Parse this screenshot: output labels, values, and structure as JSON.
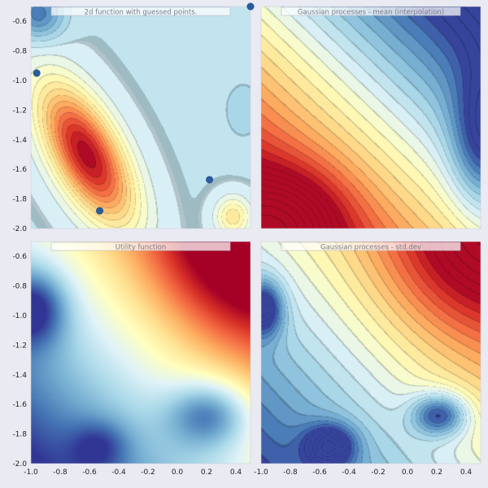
{
  "figure": {
    "background": "#eaeaf2",
    "colormap": [
      "#313695",
      "#4575b4",
      "#74add1",
      "#abd9e9",
      "#e0f3f8",
      "#ffffbf",
      "#fee090",
      "#fdae61",
      "#f46d43",
      "#d73027",
      "#a50026"
    ]
  },
  "chart_data": [
    {
      "type": "heatmap",
      "style": "filled-contour",
      "title": "2d function with guessed points.",
      "xlim": [
        -1.0,
        0.5
      ],
      "ylim": [
        -2.0,
        -0.5
      ],
      "yticks": [
        -0.6,
        -0.8,
        -1.0,
        -1.2,
        -1.4,
        -1.6,
        -1.8,
        -2.0
      ],
      "points": [
        {
          "x": -0.96,
          "y": -0.95
        },
        {
          "x": 0.5,
          "y": -0.5
        },
        {
          "x": 0.22,
          "y": -1.67
        },
        {
          "x": -0.53,
          "y": -1.88
        }
      ],
      "peak": {
        "x": -0.6,
        "y": -1.5
      }
    },
    {
      "type": "heatmap",
      "style": "filled-contour",
      "title": "Gaussian processes - mean (interpolation)",
      "xlim": [
        -1.0,
        0.5
      ],
      "ylim": [
        -2.0,
        -0.5
      ]
    },
    {
      "type": "heatmap",
      "style": "smooth",
      "title": "Utility function",
      "xlim": [
        -1.0,
        0.5
      ],
      "ylim": [
        -2.0,
        -0.5
      ],
      "xticks": [
        -1.0,
        -0.8,
        -0.6,
        -0.4,
        -0.2,
        0.0,
        0.2,
        0.4
      ],
      "yticks": [
        -0.6,
        -0.8,
        -1.0,
        -1.2,
        -1.4,
        -1.6,
        -1.8,
        -2.0
      ]
    },
    {
      "type": "heatmap",
      "style": "filled-contour",
      "title": "Gaussian processes - std.dev",
      "xlim": [
        -1.0,
        0.5
      ],
      "ylim": [
        -2.0,
        -0.5
      ],
      "xticks": [
        -1.0,
        -0.8,
        -0.6,
        -0.4,
        -0.2,
        0.0,
        0.2,
        0.4
      ]
    }
  ]
}
